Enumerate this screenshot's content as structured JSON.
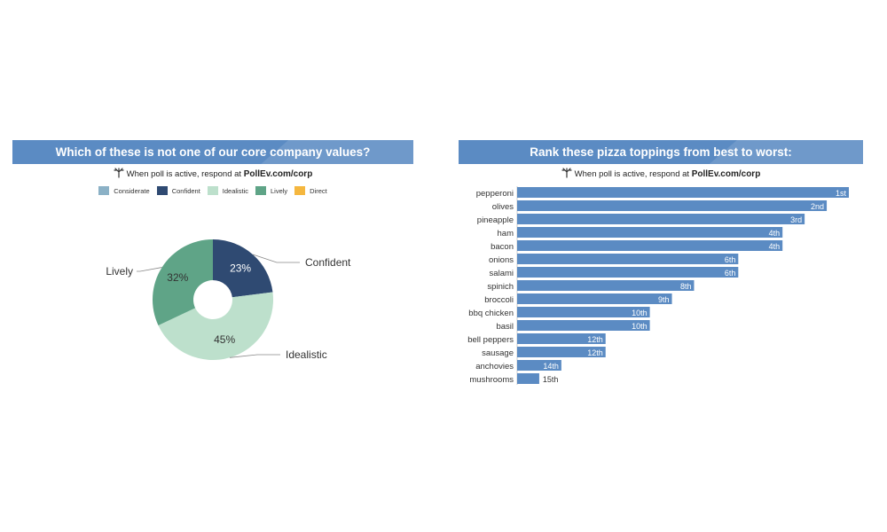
{
  "left": {
    "title": "Which of these is not one of our core company values?",
    "respond_prefix": "When poll is active, respond at ",
    "respond_url": "PollEv.com/corp",
    "legend": [
      {
        "label": "Considerate",
        "color": "#8bb1c6"
      },
      {
        "label": "Confident",
        "color": "#2f4a72"
      },
      {
        "label": "Idealistic",
        "color": "#bde0cc"
      },
      {
        "label": "Lively",
        "color": "#5fa487"
      },
      {
        "label": "Direct",
        "color": "#f5b73f"
      }
    ]
  },
  "right": {
    "title": "Rank these pizza toppings from best to worst:",
    "respond_prefix": "When poll is active, respond at ",
    "respond_url": "PollEv.com/corp"
  },
  "chart_data": [
    {
      "type": "pie",
      "title": "Which of these is not one of our core company values?",
      "categories": [
        "Confident",
        "Idealistic",
        "Lively"
      ],
      "values": [
        23,
        45,
        32
      ],
      "value_labels": [
        "23%",
        "45%",
        "32%"
      ],
      "colors": [
        "#2f4a72",
        "#bde0cc",
        "#5fa487"
      ],
      "label_colors": [
        "#ffffff",
        "#333333",
        "#333333"
      ],
      "donut": true,
      "legend": "top"
    },
    {
      "type": "bar",
      "orientation": "horizontal",
      "title": "Rank these pizza toppings from best to worst:",
      "categories": [
        "pepperoni",
        "olives",
        "pineapple",
        "ham",
        "bacon",
        "onions",
        "salami",
        "spinich",
        "broccoli",
        "bbq chicken",
        "basil",
        "bell peppers",
        "sausage",
        "anchovies",
        "mushrooms"
      ],
      "values": [
        15,
        14,
        13,
        12,
        12,
        10,
        10,
        8,
        7,
        6,
        6,
        4,
        4,
        2,
        1
      ],
      "value_labels": [
        "1st",
        "2nd",
        "3rd",
        "4th",
        "4th",
        "6th",
        "6th",
        "8th",
        "9th",
        "10th",
        "10th",
        "12th",
        "12th",
        "14th",
        "15th"
      ],
      "xlim": [
        0,
        15
      ],
      "bar_color": "#5b8bc3",
      "grid": false
    }
  ]
}
